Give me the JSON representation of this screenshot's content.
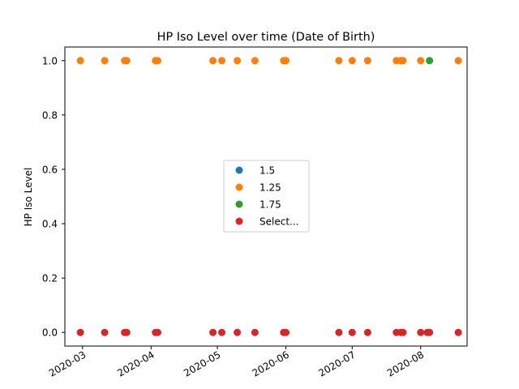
{
  "chart_data": {
    "type": "scatter",
    "title": "HP Iso Level over time (Date of Birth)",
    "xlabel": "",
    "ylabel": "HP Iso Level",
    "x_axis_type": "date",
    "xlim": [
      "2020-02-22",
      "2020-08-22"
    ],
    "ylim": [
      -0.05,
      1.05
    ],
    "x_ticks": [
      {
        "date": "2020-03-01",
        "label": "2020-03"
      },
      {
        "date": "2020-04-01",
        "label": "2020-04"
      },
      {
        "date": "2020-05-01",
        "label": "2020-05"
      },
      {
        "date": "2020-06-01",
        "label": "2020-06"
      },
      {
        "date": "2020-07-01",
        "label": "2020-07"
      },
      {
        "date": "2020-08-01",
        "label": "2020-08"
      }
    ],
    "y_ticks": [
      {
        "value": 0.0,
        "label": "0.0"
      },
      {
        "value": 0.2,
        "label": "0.2"
      },
      {
        "value": 0.4,
        "label": "0.4"
      },
      {
        "value": 0.6,
        "label": "0.6"
      },
      {
        "value": 0.8,
        "label": "0.8"
      },
      {
        "value": 1.0,
        "label": "1.0"
      }
    ],
    "grid": false,
    "legend_position": "center",
    "series": [
      {
        "name": "1.5",
        "color": "#1f77b4",
        "x": [],
        "y": []
      },
      {
        "name": "1.25",
        "color": "#ff7f0e",
        "x": [
          "2020-02-29",
          "2020-03-11",
          "2020-03-20",
          "2020-03-21",
          "2020-04-03",
          "2020-04-04",
          "2020-04-29",
          "2020-05-03",
          "2020-05-10",
          "2020-05-18",
          "2020-05-31",
          "2020-06-01",
          "2020-06-25",
          "2020-07-01",
          "2020-07-08",
          "2020-07-21",
          "2020-07-23",
          "2020-07-24",
          "2020-08-01",
          "2020-08-18"
        ],
        "y": [
          1,
          1,
          1,
          1,
          1,
          1,
          1,
          1,
          1,
          1,
          1,
          1,
          1,
          1,
          1,
          1,
          1,
          1,
          1,
          1
        ]
      },
      {
        "name": "1.75",
        "color": "#2ca02c",
        "x": [
          "2020-08-05"
        ],
        "y": [
          1
        ]
      },
      {
        "name": "Select...",
        "color": "#d62728",
        "x": [
          "2020-02-29",
          "2020-03-11",
          "2020-03-20",
          "2020-03-21",
          "2020-04-03",
          "2020-04-04",
          "2020-04-29",
          "2020-05-03",
          "2020-05-10",
          "2020-05-18",
          "2020-05-31",
          "2020-06-01",
          "2020-06-25",
          "2020-07-01",
          "2020-07-08",
          "2020-07-21",
          "2020-07-23",
          "2020-07-24",
          "2020-08-01",
          "2020-08-04",
          "2020-08-05",
          "2020-08-18"
        ],
        "y": [
          0,
          0,
          0,
          0,
          0,
          0,
          0,
          0,
          0,
          0,
          0,
          0,
          0,
          0,
          0,
          0,
          0,
          0,
          0,
          0,
          0,
          0
        ]
      }
    ]
  }
}
